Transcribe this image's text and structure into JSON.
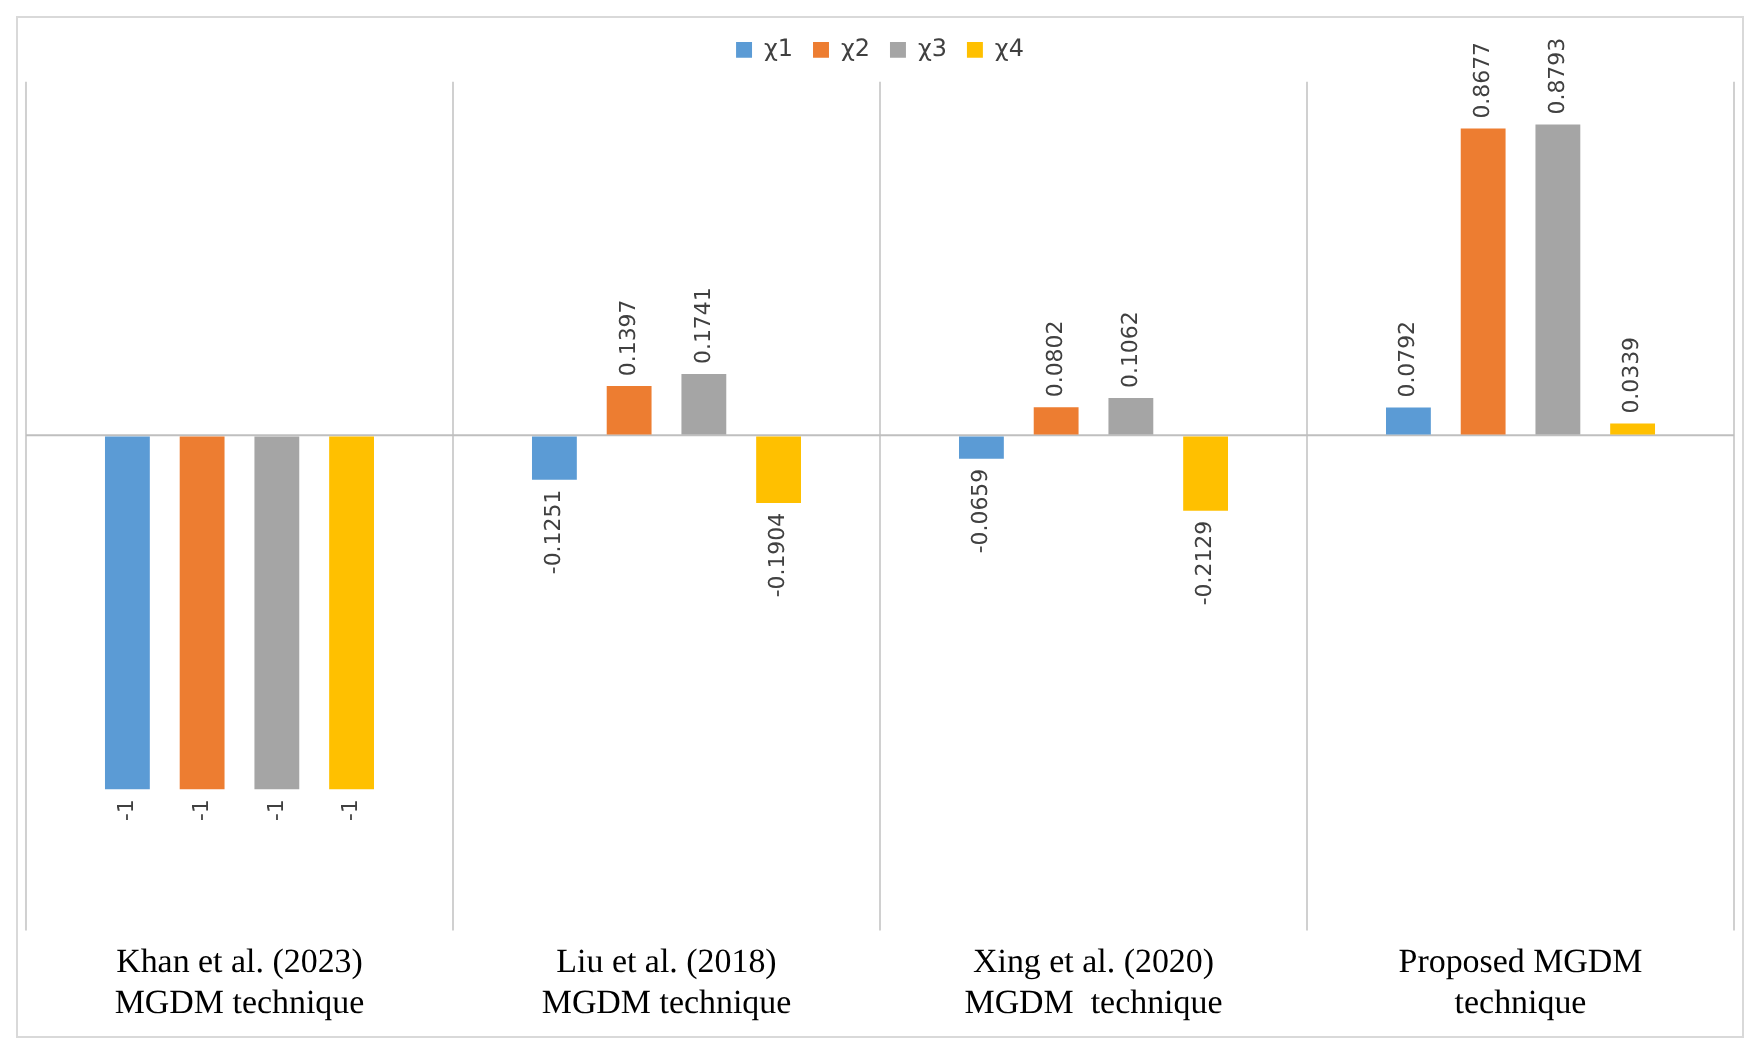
{
  "chart_data": {
    "type": "bar",
    "categories": [
      "Khan et al. (2023)\nMGDM technique",
      "Liu et al. (2018)\nMGDM technique",
      "Xing et al. (2020)\nMGDM  technique",
      "Proposed MGDM\ntechnique"
    ],
    "series": [
      {
        "name": "χ1",
        "color": "#5b9bd5",
        "values": [
          -1,
          -0.1251,
          -0.0659,
          0.0792
        ]
      },
      {
        "name": "χ2",
        "color": "#ed7d31",
        "values": [
          -1,
          0.1397,
          0.0802,
          0.8677
        ]
      },
      {
        "name": "χ3",
        "color": "#a5a5a5",
        "values": [
          -1,
          0.1741,
          0.1062,
          0.8793
        ]
      },
      {
        "name": "χ4",
        "color": "#ffc000",
        "values": [
          -1,
          -0.1904,
          -0.2129,
          0.0339
        ]
      }
    ],
    "ylim": [
      -1.4,
      1
    ],
    "tick_labels": "x",
    "data_labels": true,
    "grid": "x",
    "legend": "top"
  }
}
